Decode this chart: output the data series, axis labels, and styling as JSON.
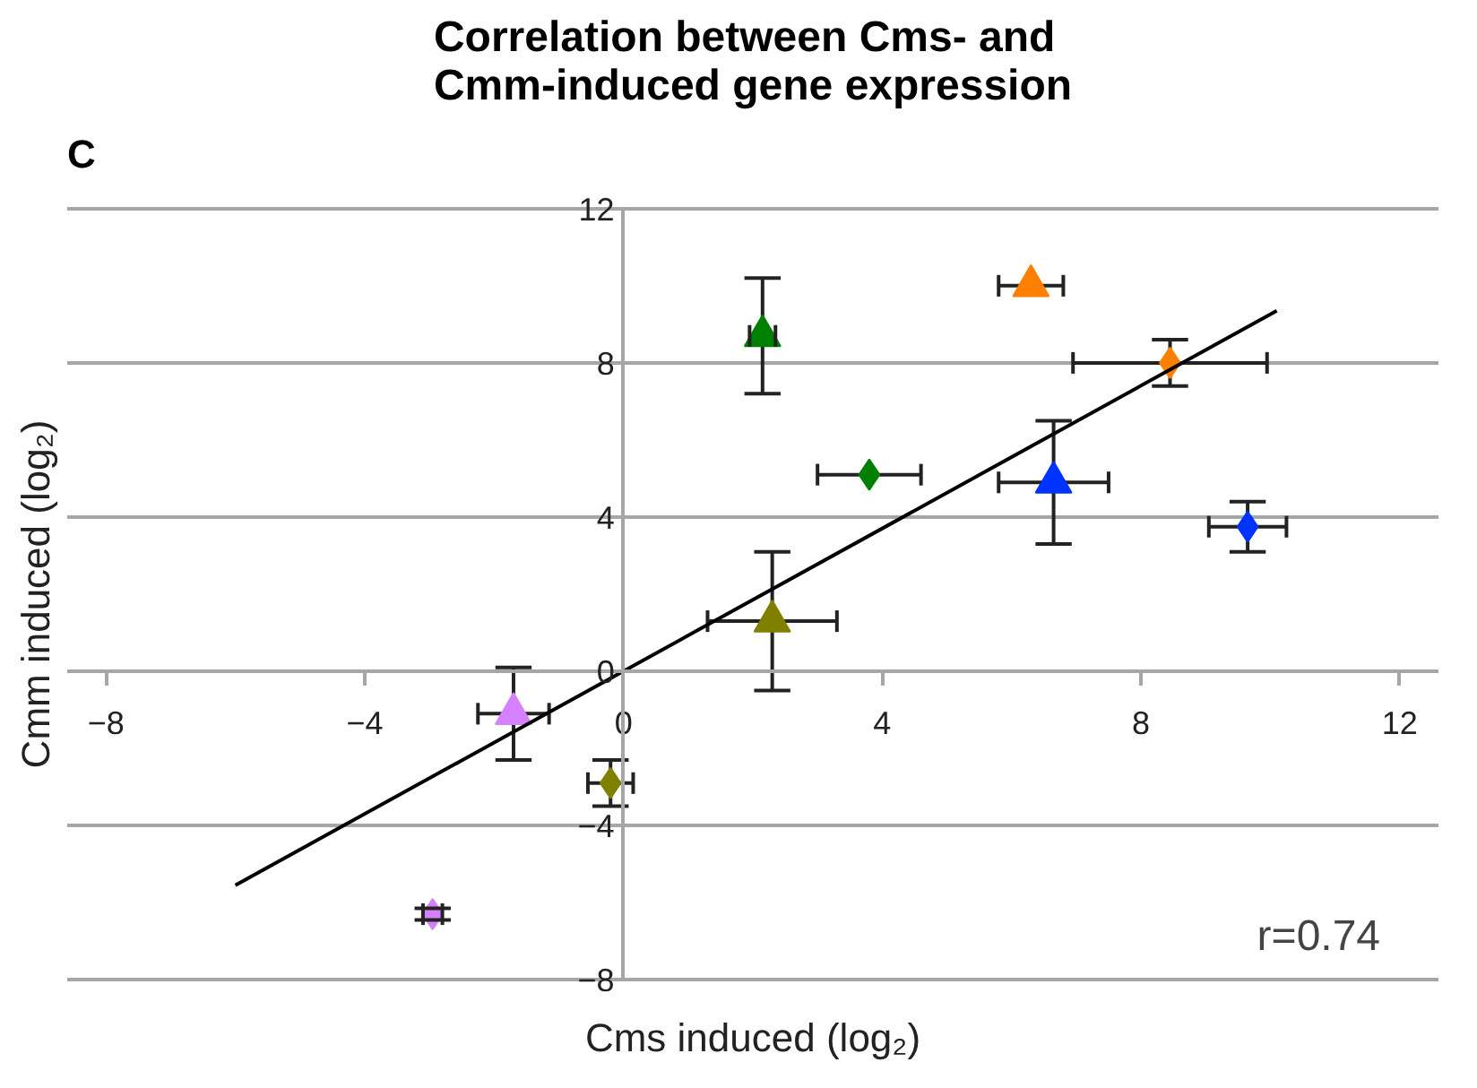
{
  "chart_data": {
    "type": "scatter",
    "title": "Correlation between Cms- and Cmm-induced gene expression",
    "xlabel": "Cms induced (log₂)",
    "ylabel": "Cmm induced (log₂)",
    "annotations": [
      "C",
      "r=0.74"
    ],
    "xlim": [
      -8,
      12
    ],
    "ylim": [
      -8,
      12
    ],
    "xticks": [
      -8,
      -4,
      0,
      4,
      8,
      12
    ],
    "yticks": [
      -8,
      -4,
      0,
      4,
      8,
      12
    ],
    "grid": "y",
    "series": [
      {
        "type": "scatter",
        "marker": "triangle",
        "x": [
          2.15,
          6.3,
          6.65,
          2.3,
          -1.7
        ],
        "values": [
          8.7,
          10.0,
          4.9,
          1.3,
          -1.1
        ],
        "colors": [
          "#008000",
          "#ff7f00",
          "#0033ff",
          "#808000",
          "#d580ff"
        ],
        "errors": [
          1.5,
          null,
          1.6,
          1.8,
          1.2
        ],
        "xerrors": [
          0.2,
          0.5,
          0.85,
          1.0,
          0.55
        ]
      },
      {
        "type": "scatter",
        "marker": "diamond",
        "x": [
          3.8,
          8.45,
          9.65,
          -0.2,
          -2.95
        ],
        "values": [
          5.1,
          8.0,
          3.75,
          -2.9,
          -6.3
        ],
        "colors": [
          "#008000",
          "#ff7f00",
          "#0033ff",
          "#808000",
          "#d580ff"
        ],
        "errors": [
          null,
          0.6,
          0.65,
          0.6,
          0.15
        ],
        "xerrors": [
          0.8,
          1.5,
          0.6,
          0.35,
          0.15
        ]
      },
      {
        "type": "line",
        "color": "#000000",
        "x": [
          -6.0,
          10.1
        ],
        "values": [
          -5.55,
          9.35
        ]
      }
    ]
  }
}
